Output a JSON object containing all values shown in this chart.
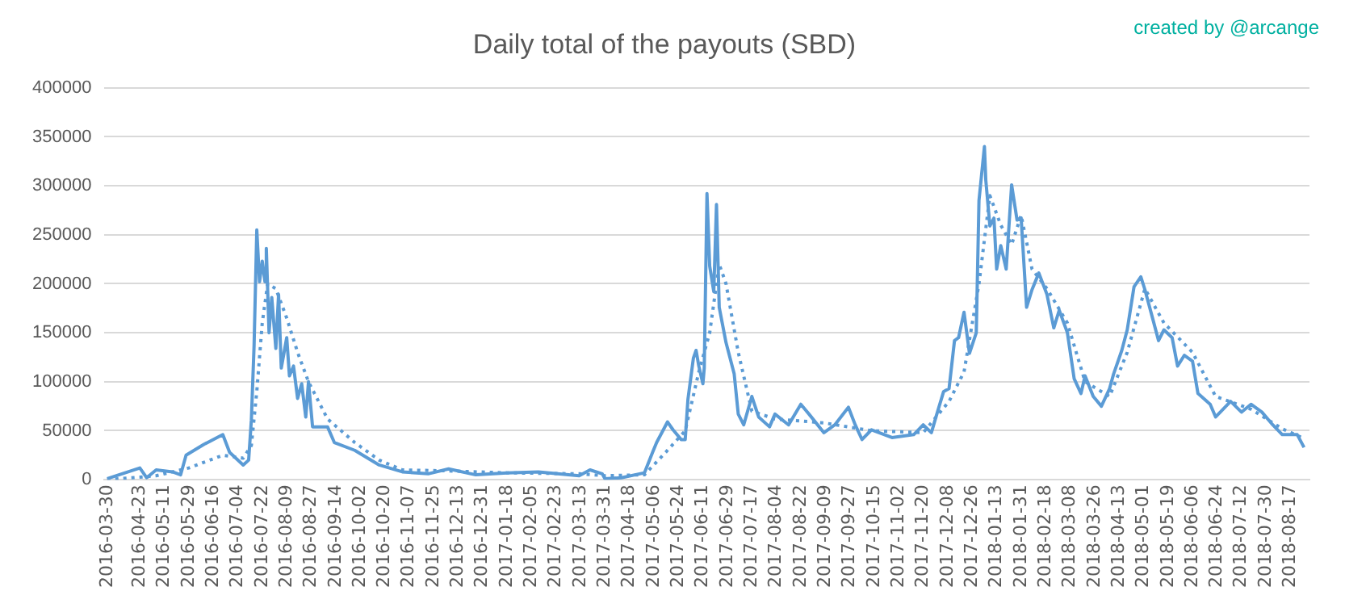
{
  "chart_data": {
    "type": "line",
    "title": "Daily total of the payouts (SBD)",
    "annotations": [
      "created by @arcange"
    ],
    "xlim": [
      "2016-03-28",
      "2018-08-31"
    ],
    "xticks": [
      "2016-03-30",
      "2016-04-23",
      "2016-05-11",
      "2016-05-29",
      "2016-06-16",
      "2016-07-04",
      "2016-07-22",
      "2016-08-09",
      "2016-08-27",
      "2016-09-14",
      "2016-10-02",
      "2016-10-20",
      "2016-11-07",
      "2016-11-25",
      "2016-12-13",
      "2016-12-31",
      "2017-01-18",
      "2017-02-05",
      "2017-02-23",
      "2017-03-13",
      "2017-03-31",
      "2017-04-18",
      "2017-05-06",
      "2017-05-24",
      "2017-06-11",
      "2017-06-29",
      "2017-07-17",
      "2017-08-04",
      "2017-08-22",
      "2017-09-09",
      "2017-09-27",
      "2017-10-15",
      "2017-11-02",
      "2017-11-20",
      "2017-12-08",
      "2017-12-26",
      "2018-01-13",
      "2018-01-31",
      "2018-02-18",
      "2018-03-08",
      "2018-03-26",
      "2018-04-13",
      "2018-05-01",
      "2018-05-19",
      "2018-06-06",
      "2018-06-24",
      "2018-07-12",
      "2018-07-30",
      "2018-08-17"
    ],
    "ylim": [
      0,
      400000
    ],
    "yticks": [
      0,
      50000,
      100000,
      150000,
      200000,
      250000,
      300000,
      350000,
      400000
    ],
    "grid": "y",
    "legend": false,
    "marker": "none",
    "series": [
      {
        "color": "#5b9bd5",
        "line_style": "solid",
        "x": [
          "2016-03-30",
          "2016-04-23",
          "2016-04-28",
          "2016-05-05",
          "2016-05-17",
          "2016-05-23",
          "2016-05-27",
          "2016-06-09",
          "2016-06-23",
          "2016-06-28",
          "2016-07-08",
          "2016-07-12",
          "2016-07-14",
          "2016-07-16",
          "2016-07-18",
          "2016-07-20",
          "2016-07-22",
          "2016-07-24",
          "2016-07-25",
          "2016-07-27",
          "2016-07-29",
          "2016-08-01",
          "2016-08-03",
          "2016-08-05",
          "2016-08-09",
          "2016-08-11",
          "2016-08-14",
          "2016-08-17",
          "2016-08-20",
          "2016-08-23",
          "2016-08-25",
          "2016-08-28",
          "2016-09-08",
          "2016-09-13",
          "2016-09-28",
          "2016-10-16",
          "2016-11-02",
          "2016-11-21",
          "2016-12-06",
          "2016-12-26",
          "2017-01-18",
          "2017-02-10",
          "2017-03-12",
          "2017-03-20",
          "2017-03-29",
          "2017-03-31",
          "2017-04-12",
          "2017-04-29",
          "2017-05-05",
          "2017-05-08",
          "2017-05-16",
          "2017-05-20",
          "2017-05-26",
          "2017-05-29",
          "2017-05-31",
          "2017-06-04",
          "2017-06-06",
          "2017-06-08",
          "2017-06-11",
          "2017-06-12",
          "2017-06-14",
          "2017-06-16",
          "2017-06-19",
          "2017-06-21",
          "2017-06-23",
          "2017-06-28",
          "2017-07-04",
          "2017-07-07",
          "2017-07-11",
          "2017-07-17",
          "2017-07-22",
          "2017-07-30",
          "2017-08-03",
          "2017-08-13",
          "2017-08-22",
          "2017-08-28",
          "2017-09-08",
          "2017-09-16",
          "2017-09-26",
          "2017-10-01",
          "2017-10-06",
          "2017-10-13",
          "2017-10-28",
          "2017-11-13",
          "2017-11-20",
          "2017-11-26",
          "2017-11-30",
          "2017-12-05",
          "2017-12-09",
          "2017-12-13",
          "2017-12-16",
          "2017-12-20",
          "2017-12-24",
          "2017-12-29",
          "2017-12-31",
          "2018-01-04",
          "2018-01-05",
          "2018-01-08",
          "2018-01-11",
          "2018-01-13",
          "2018-01-16",
          "2018-01-20",
          "2018-01-24",
          "2018-01-28",
          "2018-01-31",
          "2018-02-04",
          "2018-02-08",
          "2018-02-13",
          "2018-02-19",
          "2018-02-24",
          "2018-02-28",
          "2018-03-06",
          "2018-03-11",
          "2018-03-16",
          "2018-03-19",
          "2018-03-25",
          "2018-03-31",
          "2018-04-06",
          "2018-04-09",
          "2018-04-15",
          "2018-04-19",
          "2018-04-24",
          "2018-04-29",
          "2018-05-02",
          "2018-05-08",
          "2018-05-12",
          "2018-05-16",
          "2018-05-22",
          "2018-05-26",
          "2018-05-31",
          "2018-06-06",
          "2018-06-10",
          "2018-06-19",
          "2018-06-23",
          "2018-07-04",
          "2018-07-12",
          "2018-07-19",
          "2018-07-27",
          "2018-08-04",
          "2018-08-11",
          "2018-08-22",
          "2018-08-27"
        ],
        "values": [
          1000,
          12000,
          2000,
          10000,
          8000,
          5000,
          25000,
          36000,
          46000,
          28000,
          15000,
          20000,
          61000,
          137000,
          255000,
          202000,
          223000,
          202000,
          236000,
          150000,
          186000,
          134000,
          189000,
          114000,
          145000,
          106000,
          116000,
          83000,
          98000,
          64000,
          100000,
          54000,
          54000,
          38000,
          30000,
          15000,
          8000,
          6000,
          11000,
          5000,
          7000,
          8000,
          4000,
          10000,
          6000,
          1000,
          2000,
          7000,
          28000,
          38000,
          59000,
          51000,
          41000,
          41000,
          82000,
          124000,
          132000,
          116000,
          98000,
          114000,
          292000,
          218000,
          192000,
          281000,
          176000,
          140000,
          108000,
          67000,
          56000,
          85000,
          64000,
          54000,
          67000,
          56000,
          77000,
          67000,
          48000,
          56000,
          74000,
          56000,
          41000,
          51000,
          43000,
          46000,
          56000,
          48000,
          67000,
          90000,
          93000,
          142000,
          145000,
          171000,
          129000,
          150000,
          285000,
          340000,
          306000,
          259000,
          267000,
          215000,
          239000,
          215000,
          301000,
          265000,
          267000,
          176000,
          194000,
          211000,
          189000,
          155000,
          173000,
          150000,
          103000,
          88000,
          106000,
          85000,
          75000,
          93000,
          108000,
          132000,
          153000,
          197000,
          207000,
          194000,
          163000,
          142000,
          153000,
          145000,
          116000,
          127000,
          121000,
          88000,
          77000,
          64000,
          80000,
          69000,
          77000,
          69000,
          56000,
          46000,
          46000,
          33000
        ]
      },
      {
        "color": "#5b9bd5",
        "line_style": "dotted",
        "x": [
          "2016-03-30",
          "2016-05-05",
          "2016-05-29",
          "2016-06-23",
          "2016-07-08",
          "2016-07-14",
          "2016-07-18",
          "2016-07-22",
          "2016-07-26",
          "2016-08-01",
          "2016-08-09",
          "2016-08-17",
          "2016-08-25",
          "2016-09-08",
          "2016-09-28",
          "2016-10-16",
          "2016-11-02",
          "2016-12-06",
          "2017-01-18",
          "2017-03-12",
          "2017-03-31",
          "2017-04-29",
          "2017-05-16",
          "2017-05-29",
          "2017-06-08",
          "2017-06-16",
          "2017-06-23",
          "2017-06-28",
          "2017-07-07",
          "2017-07-17",
          "2017-08-03",
          "2017-09-08",
          "2017-10-13",
          "2017-11-20",
          "2017-12-09",
          "2017-12-20",
          "2017-12-31",
          "2018-01-08",
          "2018-01-16",
          "2018-01-24",
          "2018-01-31",
          "2018-02-08",
          "2018-02-19",
          "2018-03-06",
          "2018-03-19",
          "2018-04-06",
          "2018-04-19",
          "2018-05-02",
          "2018-05-16",
          "2018-06-06",
          "2018-06-23",
          "2018-07-19",
          "2018-08-11",
          "2018-08-27"
        ],
        "values": [
          0,
          4000,
          12000,
          25000,
          22000,
          35000,
          90000,
          160000,
          200000,
          195000,
          165000,
          130000,
          100000,
          62000,
          38000,
          20000,
          10000,
          9000,
          7000,
          6000,
          4000,
          5000,
          30000,
          50000,
          110000,
          150000,
          220000,
          200000,
          130000,
          70000,
          62000,
          58000,
          50000,
          48000,
          80000,
          110000,
          200000,
          290000,
          260000,
          240000,
          270000,
          215000,
          195000,
          160000,
          100000,
          85000,
          130000,
          195000,
          160000,
          130000,
          85000,
          72000,
          52000,
          42000
        ]
      }
    ]
  }
}
